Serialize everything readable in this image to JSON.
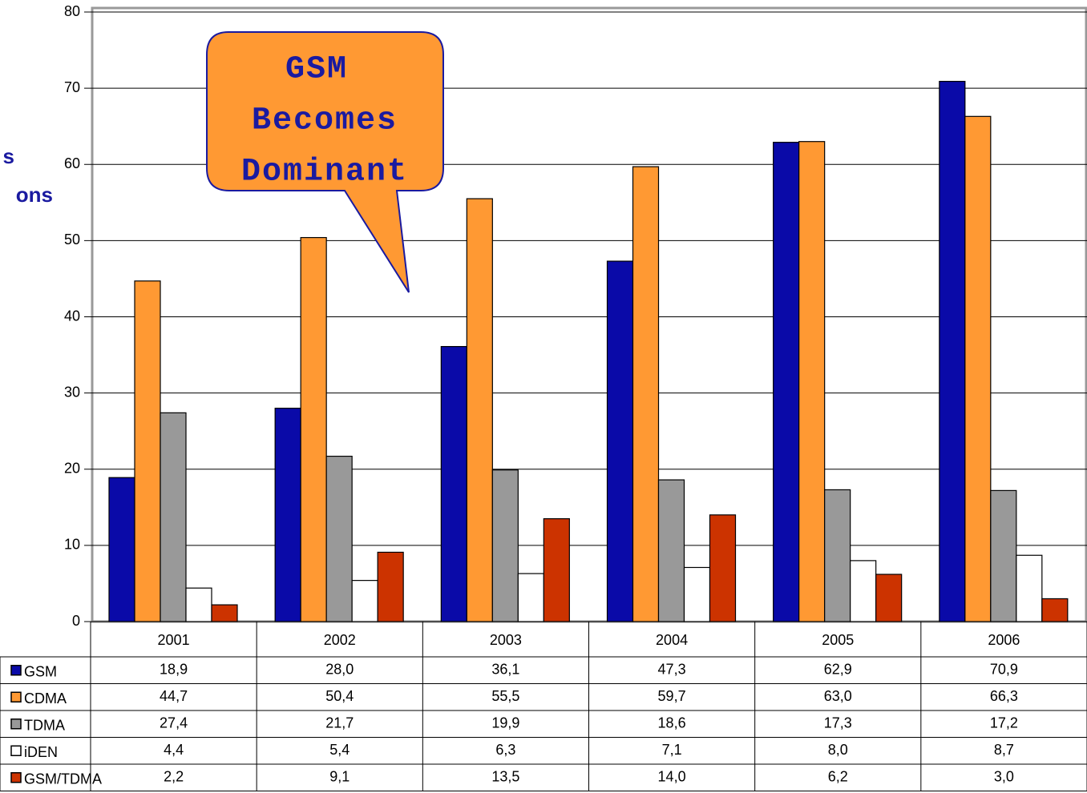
{
  "chart_data": {
    "type": "bar",
    "ylabel": [
      "s",
      "ons"
    ],
    "annotation": [
      "GSM",
      "Becomes",
      "Dominant"
    ],
    "categories": [
      "2001",
      "2002",
      "2003",
      "2004",
      "2005",
      "2006"
    ],
    "series": [
      {
        "name": "GSM",
        "color": "#0a0aa8",
        "values": [
          18.9,
          28.0,
          36.1,
          47.3,
          62.9,
          70.9
        ],
        "value_labels": [
          "18,9",
          "28,0",
          "36,1",
          "47,3",
          "62,9",
          "70,9"
        ]
      },
      {
        "name": "CDMA",
        "color": "#ff9933",
        "values": [
          44.7,
          50.4,
          55.5,
          59.7,
          63.0,
          66.3
        ],
        "value_labels": [
          "44,7",
          "50,4",
          "55,5",
          "59,7",
          "63,0",
          "66,3"
        ]
      },
      {
        "name": "TDMA",
        "color": "#999999",
        "values": [
          27.4,
          21.7,
          19.9,
          18.6,
          17.3,
          17.2
        ],
        "value_labels": [
          "27,4",
          "21,7",
          "19,9",
          "18,6",
          "17,3",
          "17,2"
        ]
      },
      {
        "name": "iDEN",
        "color": "#ffffff",
        "values": [
          4.4,
          5.4,
          6.3,
          7.1,
          8.0,
          8.7
        ],
        "value_labels": [
          "4,4",
          "5,4",
          "6,3",
          "7,1",
          "8,0",
          "8,7"
        ]
      },
      {
        "name": "GSM/TDMA",
        "color": "#cc3300",
        "values": [
          2.2,
          9.1,
          13.5,
          14.0,
          6.2,
          3.0
        ],
        "value_labels": [
          "2,2",
          "9,1",
          "13,5",
          "14,0",
          "6,2",
          "3,0"
        ]
      }
    ],
    "ylim": [
      0,
      80
    ],
    "yticks": [
      0,
      10,
      20,
      30,
      40,
      50,
      60,
      70,
      80
    ],
    "grid": true
  }
}
